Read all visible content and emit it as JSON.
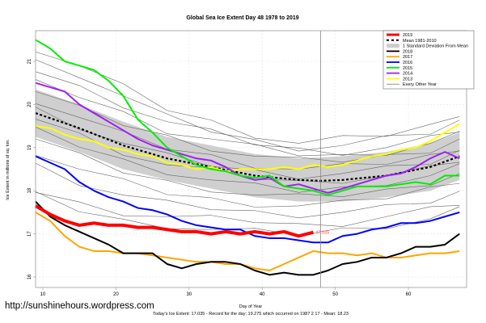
{
  "chart_data": {
    "type": "line",
    "title": "Global Sea Ice Extent Day 48 1978 to 2019",
    "xlabel": "Day of Year",
    "ylabel": "Ice Extent in millions of sq. km.",
    "xlim": [
      8,
      68
    ],
    "ylim": [
      15.75,
      21.75
    ],
    "xticks": [
      10,
      20,
      30,
      40,
      50,
      60
    ],
    "yticks": [
      16,
      17,
      18,
      19,
      20,
      21
    ],
    "grid": true,
    "legend_position": "top-right",
    "current_day": 48,
    "current_value_label": "17.035",
    "subtitle_note": "Today's Ice Extent: 17.035  - Record for the day: 19.275 which occurred on 1987 2 17  - Mean: 18.23",
    "legend": [
      {
        "label": "2019",
        "color": "#ff0000",
        "style": "thick"
      },
      {
        "label": "Mean 1981-2010",
        "color": "#000000",
        "style": "dashed"
      },
      {
        "label": "1 Standard Deviation From Mean",
        "color": "#cccccc",
        "style": "band"
      },
      {
        "label": "2018",
        "color": "#000000",
        "style": "line"
      },
      {
        "label": "2017",
        "color": "#ffa500",
        "style": "line"
      },
      {
        "label": "2016",
        "color": "#0000ff",
        "style": "line"
      },
      {
        "label": "2015",
        "color": "#00ee00",
        "style": "line"
      },
      {
        "label": "2014",
        "color": "#a020f0",
        "style": "line"
      },
      {
        "label": "2013",
        "color": "#ffff00",
        "style": "line"
      },
      {
        "label": "Every Other Year",
        "color": "#666666",
        "style": "thin"
      }
    ],
    "band": {
      "name": "1 Standard Deviation From Mean",
      "x": [
        9,
        15,
        21,
        27,
        33,
        39,
        45,
        51,
        57,
        63,
        67
      ],
      "upper": [
        20.35,
        20.0,
        19.6,
        19.25,
        19.05,
        18.85,
        18.75,
        18.8,
        18.9,
        19.1,
        19.35
      ],
      "lower": [
        19.25,
        18.9,
        18.5,
        18.25,
        18.05,
        17.85,
        17.75,
        17.75,
        17.85,
        18.0,
        18.25
      ]
    },
    "mean": {
      "name": "Mean 1981-2010",
      "x": [
        9,
        15,
        21,
        27,
        33,
        39,
        45,
        48,
        51,
        57,
        63,
        67
      ],
      "values": [
        19.8,
        19.45,
        19.05,
        18.75,
        18.55,
        18.35,
        18.25,
        18.23,
        18.25,
        18.35,
        18.55,
        18.8
      ]
    },
    "series": [
      {
        "name": "2013",
        "color": "#ffff00",
        "width": 2,
        "x": [
          9,
          11,
          13,
          15,
          17,
          19,
          21,
          23,
          25,
          27,
          29,
          31,
          33,
          35,
          37,
          39,
          41,
          43,
          45,
          47,
          49,
          51,
          53,
          55,
          57,
          59,
          61,
          63,
          65,
          67
        ],
        "values": [
          19.5,
          19.45,
          19.3,
          19.2,
          19.15,
          19.0,
          18.95,
          18.85,
          18.8,
          18.65,
          18.6,
          18.5,
          18.55,
          18.45,
          18.5,
          18.5,
          18.5,
          18.55,
          18.5,
          18.6,
          18.55,
          18.6,
          18.7,
          18.8,
          18.85,
          18.95,
          19.0,
          19.15,
          19.35,
          19.55
        ]
      },
      {
        "name": "2014",
        "color": "#a020f0",
        "width": 2,
        "x": [
          9,
          11,
          13,
          15,
          17,
          19,
          21,
          23,
          25,
          27,
          29,
          31,
          33,
          35,
          37,
          39,
          41,
          43,
          45,
          47,
          49,
          51,
          53,
          55,
          57,
          59,
          61,
          63,
          65,
          67
        ],
        "values": [
          20.5,
          20.4,
          20.3,
          20.0,
          19.8,
          19.6,
          19.4,
          19.2,
          19.05,
          18.95,
          18.85,
          18.75,
          18.7,
          18.55,
          18.35,
          18.25,
          18.3,
          18.1,
          18.15,
          18.05,
          17.95,
          18.05,
          18.15,
          18.25,
          18.35,
          18.4,
          18.55,
          18.75,
          18.9,
          18.75
        ]
      },
      {
        "name": "2015",
        "color": "#00ee00",
        "width": 2,
        "x": [
          9,
          11,
          13,
          15,
          17,
          19,
          21,
          23,
          25,
          27,
          29,
          31,
          33,
          35,
          37,
          39,
          41,
          43,
          45,
          47,
          49,
          51,
          53,
          55,
          57,
          59,
          61,
          63,
          65,
          67
        ],
        "values": [
          21.5,
          21.3,
          21.0,
          20.9,
          20.8,
          20.55,
          20.2,
          19.65,
          19.35,
          19.0,
          18.8,
          18.6,
          18.5,
          18.45,
          18.35,
          18.3,
          18.35,
          18.1,
          18.05,
          18.0,
          17.9,
          18.0,
          18.1,
          18.1,
          18.1,
          18.15,
          18.2,
          18.15,
          18.35,
          18.35
        ]
      },
      {
        "name": "2016",
        "color": "#0000ff",
        "width": 2,
        "x": [
          9,
          11,
          13,
          15,
          17,
          19,
          21,
          23,
          25,
          27,
          29,
          31,
          33,
          35,
          37,
          39,
          41,
          43,
          45,
          47,
          49,
          51,
          53,
          55,
          57,
          59,
          61,
          63,
          65,
          67
        ],
        "values": [
          18.8,
          18.65,
          18.5,
          18.2,
          18.0,
          17.85,
          17.75,
          17.6,
          17.55,
          17.45,
          17.3,
          17.2,
          17.15,
          17.1,
          17.1,
          16.95,
          16.9,
          16.9,
          16.85,
          16.8,
          16.8,
          16.95,
          17.0,
          17.1,
          17.15,
          17.25,
          17.25,
          17.3,
          17.4,
          17.5
        ]
      },
      {
        "name": "2017",
        "color": "#ffa500",
        "width": 2,
        "x": [
          9,
          11,
          13,
          15,
          17,
          19,
          21,
          23,
          25,
          27,
          29,
          31,
          33,
          35,
          37,
          39,
          41,
          43,
          45,
          47,
          49,
          51,
          53,
          55,
          57,
          59,
          61,
          63,
          65,
          67
        ],
        "values": [
          17.5,
          17.3,
          16.95,
          16.7,
          16.6,
          16.6,
          16.55,
          16.55,
          16.5,
          16.45,
          16.4,
          16.35,
          16.35,
          16.3,
          16.3,
          16.2,
          16.15,
          16.3,
          16.45,
          16.6,
          16.55,
          16.55,
          16.5,
          16.55,
          16.45,
          16.45,
          16.5,
          16.55,
          16.55,
          16.6
        ]
      },
      {
        "name": "2018",
        "color": "#000000",
        "width": 2,
        "x": [
          9,
          11,
          13,
          15,
          17,
          19,
          21,
          23,
          25,
          27,
          29,
          31,
          33,
          35,
          37,
          39,
          41,
          43,
          45,
          47,
          49,
          51,
          53,
          55,
          57,
          59,
          61,
          63,
          65,
          67
        ],
        "values": [
          17.75,
          17.4,
          17.2,
          17.05,
          16.9,
          16.75,
          16.55,
          16.55,
          16.55,
          16.3,
          16.2,
          16.3,
          16.35,
          16.35,
          16.3,
          16.15,
          16.05,
          16.1,
          16.05,
          16.05,
          16.15,
          16.3,
          16.35,
          16.45,
          16.45,
          16.55,
          16.7,
          16.7,
          16.75,
          17.0
        ]
      },
      {
        "name": "2019",
        "color": "#ff0000",
        "width": 4,
        "x": [
          9,
          11,
          13,
          15,
          17,
          19,
          21,
          23,
          25,
          27,
          29,
          31,
          33,
          35,
          37,
          39,
          41,
          43,
          45,
          47
        ],
        "values": [
          17.65,
          17.45,
          17.3,
          17.2,
          17.25,
          17.2,
          17.2,
          17.15,
          17.15,
          17.1,
          17.05,
          17.05,
          17.0,
          17.05,
          17.0,
          17.05,
          17.0,
          17.05,
          16.95,
          17.035
        ]
      }
    ],
    "other_years": {
      "name": "Every Other Year",
      "color": "#666666",
      "x": [
        9,
        15,
        21,
        27,
        33,
        39,
        45,
        51,
        57,
        63,
        67
      ],
      "lines": [
        [
          21.3,
          20.9,
          20.4,
          19.9,
          19.6,
          19.3,
          19.1,
          19.2,
          19.3,
          19.5,
          19.8
        ],
        [
          21.0,
          20.7,
          20.2,
          19.7,
          19.4,
          19.15,
          19.0,
          19.05,
          19.2,
          19.35,
          19.6
        ],
        [
          20.8,
          20.4,
          20.0,
          19.6,
          19.35,
          19.1,
          18.95,
          18.9,
          19.0,
          19.2,
          19.4
        ],
        [
          20.5,
          20.2,
          19.8,
          19.4,
          19.2,
          19.0,
          18.85,
          18.8,
          18.9,
          19.1,
          19.3
        ],
        [
          20.3,
          19.9,
          19.55,
          19.25,
          19.0,
          18.8,
          18.7,
          18.7,
          18.8,
          18.95,
          19.2
        ],
        [
          20.1,
          19.7,
          19.3,
          19.0,
          18.8,
          18.6,
          18.5,
          18.55,
          18.65,
          18.8,
          19.0
        ],
        [
          19.9,
          19.5,
          19.1,
          18.8,
          18.6,
          18.45,
          18.35,
          18.4,
          18.5,
          18.65,
          18.9
        ],
        [
          19.7,
          19.3,
          18.9,
          18.6,
          18.45,
          18.3,
          18.2,
          18.25,
          18.35,
          18.5,
          18.7
        ],
        [
          19.4,
          19.05,
          18.7,
          18.45,
          18.25,
          18.1,
          18.0,
          18.05,
          18.2,
          18.35,
          18.55
        ],
        [
          19.2,
          18.8,
          18.45,
          18.2,
          18.05,
          17.9,
          17.85,
          17.9,
          18.0,
          18.2,
          18.4
        ],
        [
          18.9,
          18.5,
          18.2,
          17.95,
          17.8,
          17.7,
          17.65,
          17.7,
          17.85,
          18.05,
          18.25
        ],
        [
          18.6,
          18.2,
          17.9,
          17.7,
          17.6,
          17.5,
          17.45,
          17.5,
          17.6,
          17.75,
          17.95
        ],
        [
          18.0,
          17.7,
          17.5,
          17.4,
          17.35,
          17.3,
          17.2,
          17.25,
          17.4,
          17.55,
          17.7
        ],
        [
          17.9,
          17.55,
          17.3,
          17.2,
          17.1,
          17.05,
          17.0,
          17.1,
          17.2,
          17.35,
          17.55
        ]
      ]
    }
  },
  "footer": {
    "url": "http://sunshinehours.wordpress.com"
  }
}
